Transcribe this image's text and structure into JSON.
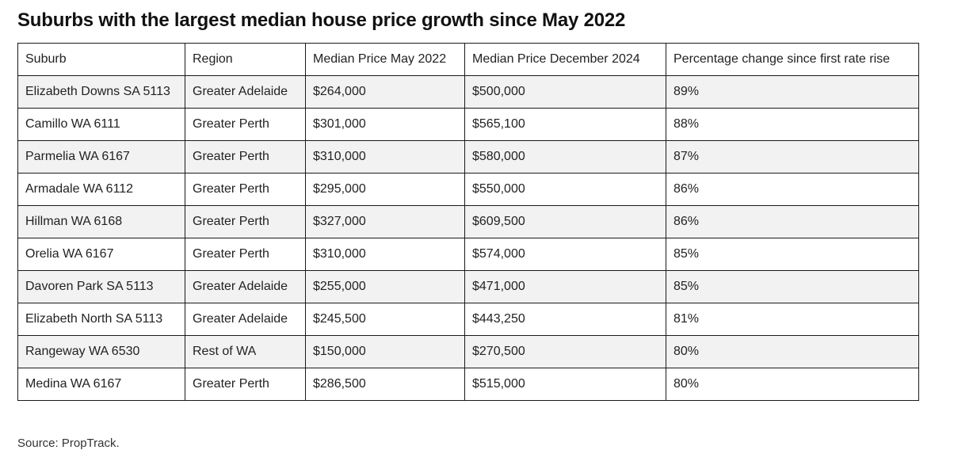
{
  "title": "Suburbs with the largest median house price growth since May 2022",
  "table": {
    "headers": [
      "Suburb",
      "Region",
      "Median Price May 2022",
      "Median Price December 2024",
      "Percentage change since first rate rise"
    ],
    "rows": [
      [
        "Elizabeth Downs SA 5113",
        "Greater Adelaide",
        "$264,000",
        "$500,000",
        "89%"
      ],
      [
        "Camillo WA 6111",
        "Greater Perth",
        "$301,000",
        "$565,100",
        "88%"
      ],
      [
        "Parmelia WA 6167",
        "Greater Perth",
        "$310,000",
        "$580,000",
        "87%"
      ],
      [
        "Armadale WA 6112",
        "Greater Perth",
        "$295,000",
        "$550,000",
        "86%"
      ],
      [
        "Hillman WA 6168",
        "Greater Perth",
        "$327,000",
        "$609,500",
        "86%"
      ],
      [
        "Orelia WA 6167",
        "Greater Perth",
        "$310,000",
        "$574,000",
        "85%"
      ],
      [
        "Davoren Park SA 5113",
        "Greater Adelaide",
        "$255,000",
        "$471,000",
        "85%"
      ],
      [
        "Elizabeth North SA 5113",
        "Greater Adelaide",
        "$245,500",
        "$443,250",
        "81%"
      ],
      [
        "Rangeway WA 6530",
        "Rest of WA",
        "$150,000",
        "$270,500",
        "80%"
      ],
      [
        "Medina WA 6167",
        "Greater Perth",
        "$286,500",
        "$515,000",
        "80%"
      ]
    ]
  },
  "source": "Source: PropTrack."
}
